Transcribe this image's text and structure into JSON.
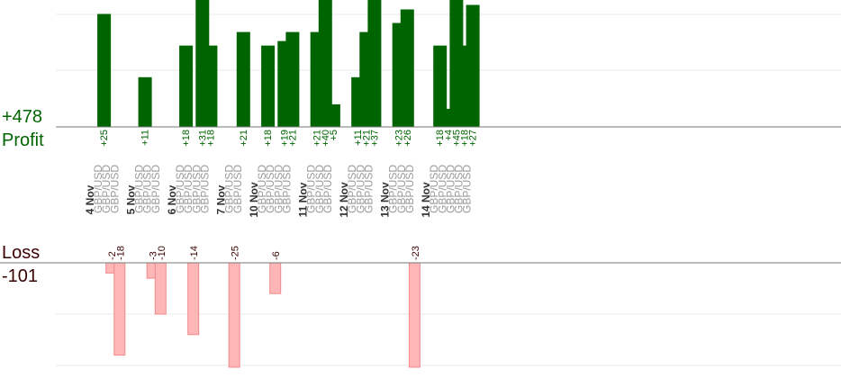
{
  "summary": {
    "profit_total": "+478",
    "profit_label": "Profit",
    "loss_label": "Loss",
    "loss_total": "-101"
  },
  "colors": {
    "profit_bar": "#006400",
    "profit_text": "#006400",
    "loss_fill": "#ffb6b6",
    "loss_stroke": "#f08a8a",
    "loss_text": "#3b0000",
    "axis": "#777777",
    "grid": "#e8e8e8",
    "date_text": "#333333",
    "pair_text": "#999999"
  },
  "chart_data": {
    "type": "bar",
    "title": "",
    "xlabel": "",
    "ylabel": "",
    "profit_ylim": [
      0,
      25
    ],
    "loss_ylim": [
      -18,
      0
    ],
    "grid": true,
    "columns": [
      {
        "kind": "date",
        "label": "4 Nov"
      },
      {
        "kind": "trade",
        "pair": "GBP/USD",
        "profit": 25,
        "profit_label": "+25"
      },
      {
        "kind": "trade",
        "pair": "GBP/USD",
        "loss": -2,
        "loss_label": "-2"
      },
      {
        "kind": "trade",
        "pair": "GBP/USD",
        "loss": -18,
        "loss_label": "-18"
      },
      {
        "kind": "gap"
      },
      {
        "kind": "date",
        "label": "5 Nov"
      },
      {
        "kind": "trade",
        "pair": "GBP/USD",
        "profit": 11,
        "profit_label": "+11"
      },
      {
        "kind": "trade",
        "pair": "GBP/USD",
        "loss": -3,
        "loss_label": "-3"
      },
      {
        "kind": "trade",
        "pair": "GBP/USD",
        "loss": -10,
        "loss_label": "-10"
      },
      {
        "kind": "gap"
      },
      {
        "kind": "date",
        "label": "6 Nov"
      },
      {
        "kind": "trade",
        "pair": "GBP/USD",
        "profit": 18,
        "profit_label": "+18"
      },
      {
        "kind": "trade",
        "pair": "GBP/USD",
        "loss": -14,
        "loss_label": "-14"
      },
      {
        "kind": "trade",
        "pair": "GBP/USD",
        "profit": 31,
        "profit_label": "+31"
      },
      {
        "kind": "trade",
        "pair": "GBP/USD",
        "profit": 18,
        "profit_label": "+18"
      },
      {
        "kind": "gap"
      },
      {
        "kind": "date",
        "label": "7 Nov"
      },
      {
        "kind": "trade",
        "pair": "GBP/USD",
        "loss": -25,
        "loss_label": "-25"
      },
      {
        "kind": "trade",
        "pair": "GBP/USD",
        "profit": 21,
        "profit_label": "+21"
      },
      {
        "kind": "gap"
      },
      {
        "kind": "date",
        "label": "10 Nov"
      },
      {
        "kind": "trade",
        "pair": "GBP/USD",
        "profit": 18,
        "profit_label": "+18"
      },
      {
        "kind": "trade",
        "pair": "GBP/USD",
        "loss": -6,
        "loss_label": "-6"
      },
      {
        "kind": "trade",
        "pair": "GBP/USD",
        "profit": 19,
        "profit_label": "+19"
      },
      {
        "kind": "trade",
        "pair": "GBP/USD",
        "profit": 21,
        "profit_label": "+21"
      },
      {
        "kind": "gap"
      },
      {
        "kind": "date",
        "label": "11 Nov"
      },
      {
        "kind": "trade",
        "pair": "GBP/USD",
        "profit": 21,
        "profit_label": "+21"
      },
      {
        "kind": "trade",
        "pair": "GBP/USD",
        "profit": 40,
        "profit_label": "+40"
      },
      {
        "kind": "trade",
        "pair": "GBP/USD",
        "profit": 5,
        "profit_label": "+5"
      },
      {
        "kind": "gap"
      },
      {
        "kind": "date",
        "label": "12 Nov"
      },
      {
        "kind": "trade",
        "pair": "GBP/USD",
        "profit": 11,
        "profit_label": "+11"
      },
      {
        "kind": "trade",
        "pair": "GBP/USD",
        "profit": 21,
        "profit_label": "+21"
      },
      {
        "kind": "trade",
        "pair": "GBP/USD",
        "profit": 37,
        "profit_label": "+37"
      },
      {
        "kind": "gap"
      },
      {
        "kind": "date",
        "label": "13 Nov"
      },
      {
        "kind": "trade",
        "pair": "GBP/USD",
        "profit": 23,
        "profit_label": "+23"
      },
      {
        "kind": "trade",
        "pair": "GBP/USD",
        "profit": 26,
        "profit_label": "+26"
      },
      {
        "kind": "trade",
        "pair": "GBP/USD",
        "loss": -23,
        "loss_label": "-23"
      },
      {
        "kind": "gap"
      },
      {
        "kind": "date",
        "label": "14 Nov"
      },
      {
        "kind": "trade",
        "pair": "GBP/USD",
        "profit": 18,
        "profit_label": "+18"
      },
      {
        "kind": "trade",
        "pair": "GBP/USD",
        "profit": 4,
        "profit_label": "+4"
      },
      {
        "kind": "trade",
        "pair": "GBP/USD",
        "profit": 45,
        "profit_label": "+45"
      },
      {
        "kind": "trade",
        "pair": "GBP/USD",
        "profit": 18,
        "profit_label": "+18"
      },
      {
        "kind": "trade",
        "pair": "GBP/USD",
        "profit": 27,
        "profit_label": "+27"
      }
    ]
  }
}
